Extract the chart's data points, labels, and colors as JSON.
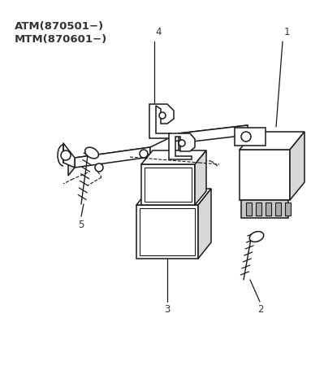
{
  "title_line1": "ATM(870501−)",
  "title_line2": "MTM(870601−)",
  "bg_color": "#ffffff",
  "line_color": "#1a1a1a",
  "label_color": "#333333",
  "title_color": "#333333",
  "figsize": [
    3.83,
    4.66
  ],
  "dpi": 100
}
